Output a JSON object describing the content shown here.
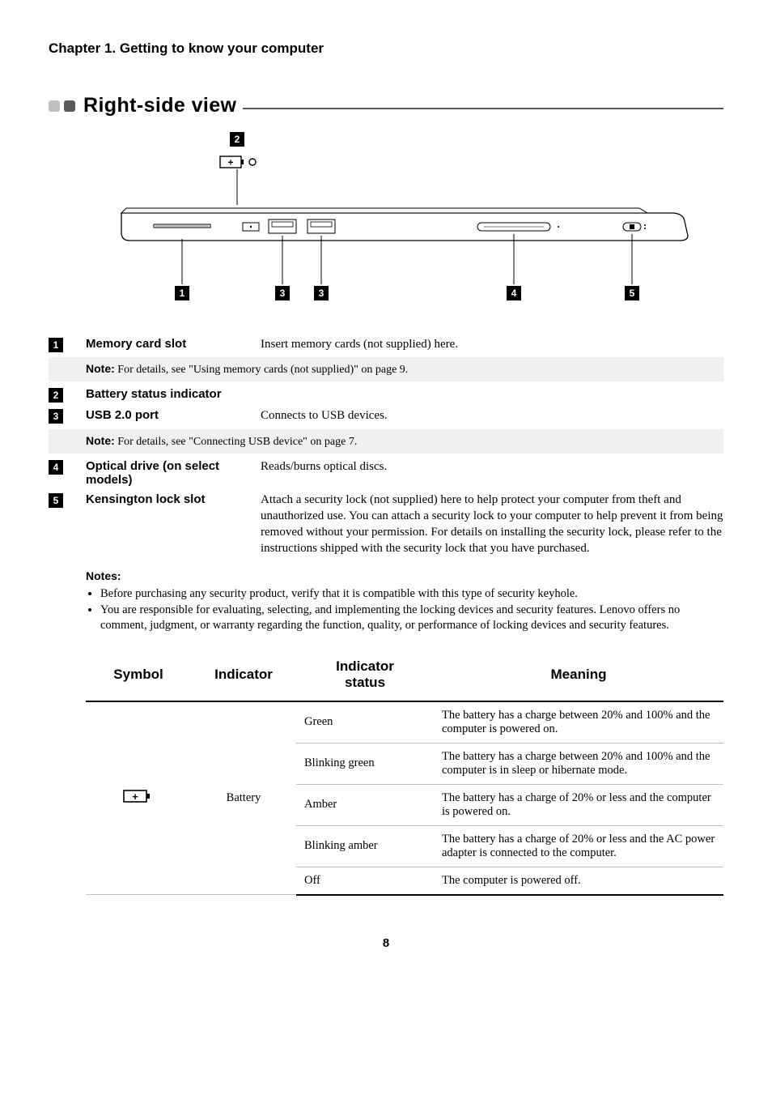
{
  "chapter": "Chapter 1. Getting to know your computer",
  "section": {
    "title": "Right-side view",
    "dot_colors": [
      "#bfbfbf",
      "#595959"
    ],
    "line_color": "#595959"
  },
  "diagram": {
    "top_callout_num": "2",
    "bottom_callouts": [
      "1",
      "3",
      "3",
      "4",
      "5"
    ]
  },
  "defs": [
    {
      "num": "1",
      "label": "Memory card slot",
      "text": "Insert memory cards (not supplied) here."
    },
    {
      "note": true,
      "bold": "Note:",
      "text": " For details, see \"Using memory cards (not supplied)\" on page 9."
    },
    {
      "num": "2",
      "label": "Battery status indicator",
      "text": ""
    },
    {
      "num": "3",
      "label": "USB 2.0 port",
      "text": "Connects to USB devices."
    },
    {
      "note": true,
      "bold": "Note:",
      "text": " For details, see \"Connecting USB device\" on page 7."
    },
    {
      "num": "4",
      "label": "Optical drive (on select models)",
      "text": "Reads/burns optical discs."
    },
    {
      "num": "5",
      "label": "Kensington lock slot",
      "text": "Attach a security lock (not supplied) here to help protect your computer from theft and unauthorized use. You can attach a security lock to your computer to help prevent it from being removed without your permission. For details on installing the security lock, please refer to the instructions shipped with the security lock that you have purchased."
    }
  ],
  "notes": {
    "header": "Notes:",
    "items": [
      "Before purchasing any security product, verify that it is compatible with this type of security keyhole.",
      "You are responsible for evaluating, selecting, and implementing the locking devices and security features. Lenovo offers no comment, judgment, or warranty regarding the function, quality, or performance of locking devices and security features."
    ]
  },
  "table": {
    "headers": [
      "Symbol",
      "Indicator",
      "Indicator status",
      "Meaning"
    ],
    "indicator_name": "Battery",
    "rows": [
      {
        "status": "Green",
        "meaning": "The battery has a charge between 20% and 100% and the computer is powered on."
      },
      {
        "status": "Blinking green",
        "meaning": "The battery has a charge between 20% and 100% and the computer is in sleep or hibernate mode."
      },
      {
        "status": "Amber",
        "meaning": "The battery has a charge of 20% or less and the computer is powered on."
      },
      {
        "status": "Blinking amber",
        "meaning": "The battery has a charge of 20% or less and the AC power adapter is connected to the computer."
      },
      {
        "status": "Off",
        "meaning": "The computer is powered off."
      }
    ]
  },
  "page_number": "8"
}
